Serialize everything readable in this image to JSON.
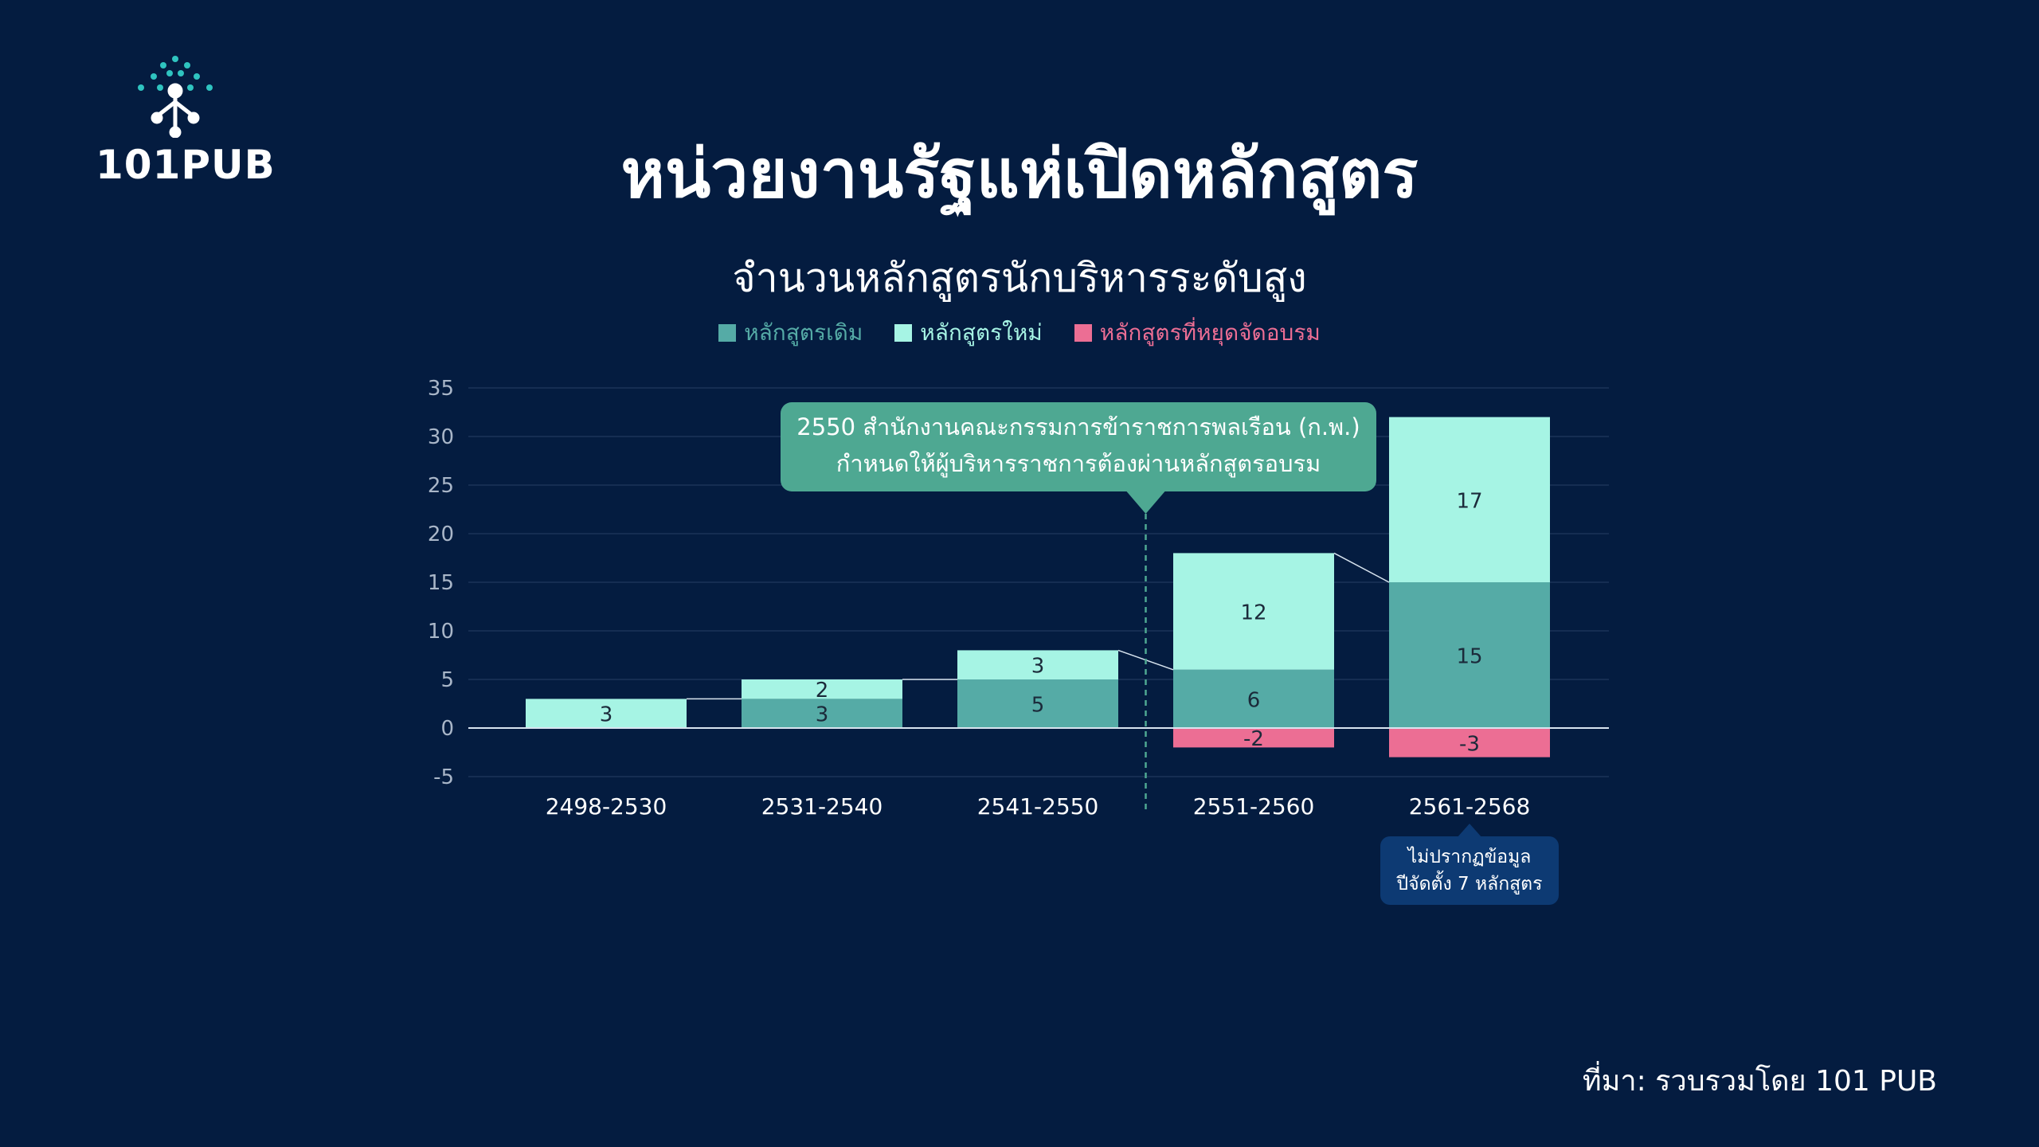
{
  "brand": {
    "logo_text": "101PUB"
  },
  "title": "หน่วยงานรัฐแห่เปิดหลักสูตร",
  "source": "ที่มา: รวบรวมโดย 101 PUB",
  "colors": {
    "background": "#041c40",
    "existing": "#55aba6",
    "new": "#a6f4e4",
    "stopped": "#ec6e94",
    "annotation": "#4ea892",
    "note": "#0d3a73"
  },
  "chart_data": {
    "type": "bar",
    "stacked": true,
    "title": "จำนวนหลักสูตรนักบริหารระดับสูง",
    "categories": [
      "2498-2530",
      "2531-2540",
      "2541-2550",
      "2551-2560",
      "2561-2568"
    ],
    "series": [
      {
        "name": "หลักสูตรเดิม",
        "color": "#55aba6",
        "values": [
          0,
          3,
          5,
          6,
          15
        ]
      },
      {
        "name": "หลักสูตรใหม่",
        "color": "#a6f4e4",
        "values": [
          3,
          2,
          3,
          12,
          17
        ]
      },
      {
        "name": "หลักสูตรที่หยุดจัดอบรม",
        "color": "#ec6e94",
        "values": [
          0,
          0,
          0,
          -2,
          -3
        ]
      }
    ],
    "ylim": [
      -5,
      35
    ],
    "yticks": [
      35,
      30,
      25,
      20,
      15,
      10,
      5,
      0,
      -5
    ],
    "legend_position": "top-center",
    "grid": true,
    "annotations": [
      {
        "text_line1": "2550 สำนักงานคณะกรรมการข้าราชการพลเรือน (ก.พ.)",
        "text_line2": "กำหนดให้ผู้บริหารราชการต้องผ่านหลักสูตรอบรม",
        "at_category_boundary": "2541-2550/2551-2560"
      },
      {
        "text_line1": "ไม่ปรากฏข้อมูล",
        "text_line2": "ปีจัดตั้ง 7 หลักสูตร",
        "category": "2561-2568"
      }
    ]
  }
}
